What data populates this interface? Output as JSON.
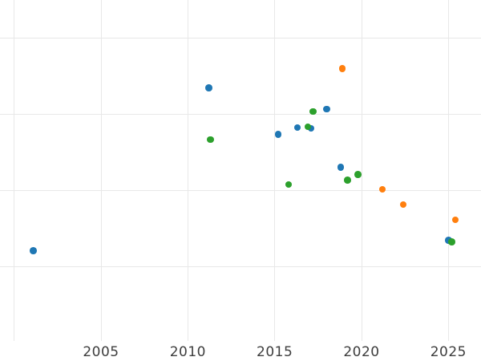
{
  "chart_data": {
    "type": "scatter",
    "title": "",
    "xlabel": "",
    "ylabel": "",
    "legend": "none",
    "grid": true,
    "background_color": "#ffffff",
    "gridline_color": "#e8e8e8",
    "tick_label_color": "#3d3d3d",
    "x_axis": {
      "ticks": [
        {
          "year": 2005,
          "label": "2005"
        },
        {
          "year": 2010,
          "label": "2010"
        },
        {
          "year": 2015,
          "label": "2015"
        },
        {
          "year": 2020,
          "label": "2020"
        },
        {
          "year": 2025,
          "label": "2025"
        }
      ],
      "gridline_years": [
        2000,
        2005,
        2010,
        2015,
        2020,
        2025
      ],
      "range_years": [
        1999.2,
        2026.9
      ]
    },
    "y_axis": {
      "tick_labels_visible": false,
      "gridline_units": [
        0,
        1,
        2,
        3
      ],
      "range_units": [
        -0.97,
        3.5
      ]
    },
    "series": [
      {
        "name": "blue",
        "color": "#1f77b4",
        "points": [
          {
            "x": 2001.1,
            "y": 0.21
          },
          {
            "x": 2011.2,
            "y": 2.35
          },
          {
            "x": 2015.2,
            "y": 1.74
          },
          {
            "x": 2016.3,
            "y": 1.83
          },
          {
            "x": 2017.1,
            "y": 1.82
          },
          {
            "x": 2018.0,
            "y": 2.07
          },
          {
            "x": 2018.8,
            "y": 1.31
          },
          {
            "x": 2025.0,
            "y": 0.35
          }
        ]
      },
      {
        "name": "orange",
        "color": "#ff7f0e",
        "points": [
          {
            "x": 2018.9,
            "y": 2.6
          },
          {
            "x": 2021.2,
            "y": 1.02
          },
          {
            "x": 2022.4,
            "y": 0.82
          },
          {
            "x": 2025.4,
            "y": 0.62
          }
        ]
      },
      {
        "name": "green",
        "color": "#2ca02c",
        "points": [
          {
            "x": 2011.3,
            "y": 1.67
          },
          {
            "x": 2015.8,
            "y": 1.08
          },
          {
            "x": 2016.9,
            "y": 1.84
          },
          {
            "x": 2017.2,
            "y": 2.04
          },
          {
            "x": 2019.2,
            "y": 1.14
          },
          {
            "x": 2019.8,
            "y": 1.21
          },
          {
            "x": 2025.2,
            "y": 0.33
          }
        ]
      }
    ]
  }
}
